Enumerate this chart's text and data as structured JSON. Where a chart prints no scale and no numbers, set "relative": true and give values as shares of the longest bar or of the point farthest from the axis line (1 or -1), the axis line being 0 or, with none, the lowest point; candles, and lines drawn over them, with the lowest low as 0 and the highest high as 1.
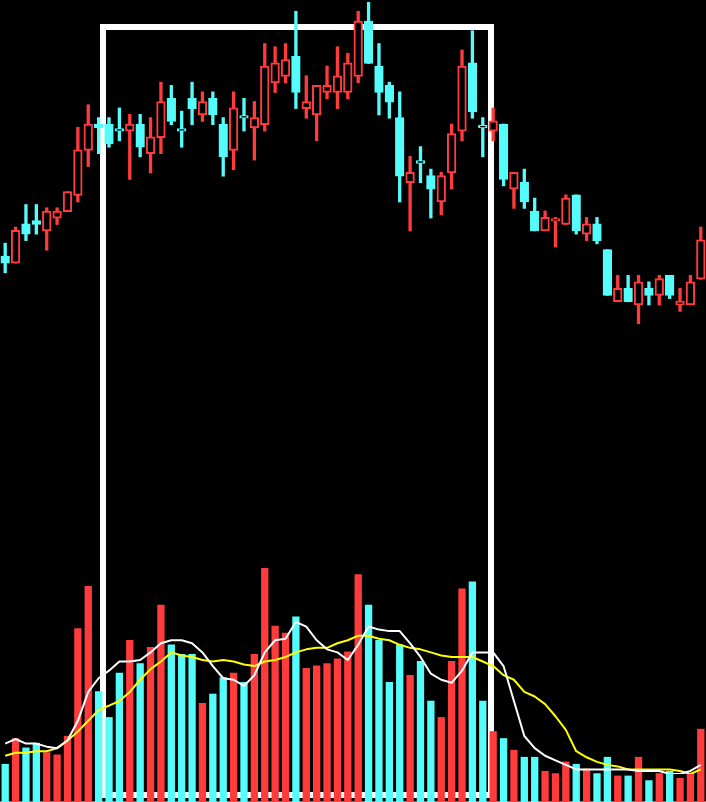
{
  "chart_data": [
    {
      "type": "candlestick",
      "relative": true,
      "categories": [
        null,
        null,
        null,
        null,
        null,
        null,
        null,
        null,
        null,
        null,
        null,
        null,
        null,
        null,
        null,
        null,
        null,
        null,
        null,
        null,
        null,
        null,
        null,
        null,
        null,
        null,
        null,
        null,
        null,
        null,
        null,
        null,
        null,
        null,
        null,
        null,
        null,
        null,
        null,
        null,
        null,
        null,
        null,
        null,
        null,
        null,
        null,
        null,
        null,
        null,
        null,
        null,
        null,
        null,
        null,
        null,
        null,
        null,
        null,
        null,
        null,
        null,
        null,
        null,
        null,
        null,
        null,
        null
      ],
      "ohlc": [
        [
          0.21,
          0.25,
          0.16,
          0.19
        ],
        [
          0.19,
          0.3,
          0.19,
          0.29
        ],
        [
          0.31,
          0.37,
          0.26,
          0.28
        ],
        [
          0.32,
          0.37,
          0.28,
          0.31
        ],
        [
          0.29,
          0.36,
          0.23,
          0.35
        ],
        [
          0.33,
          0.36,
          0.31,
          0.35
        ],
        [
          0.35,
          0.41,
          0.35,
          0.41
        ],
        [
          0.4,
          0.61,
          0.38,
          0.54
        ],
        [
          0.54,
          0.68,
          0.49,
          0.62
        ],
        [
          0.62,
          0.64,
          0.53,
          0.61
        ],
        [
          0.62,
          0.64,
          0.55,
          0.56
        ],
        [
          0.6,
          0.67,
          0.57,
          0.6
        ],
        [
          0.6,
          0.65,
          0.45,
          0.62
        ],
        [
          0.62,
          0.65,
          0.52,
          0.55
        ],
        [
          0.53,
          0.64,
          0.47,
          0.58
        ],
        [
          0.58,
          0.75,
          0.53,
          0.69
        ],
        [
          0.7,
          0.74,
          0.62,
          0.63
        ],
        [
          0.6,
          0.66,
          0.55,
          0.6
        ],
        [
          0.7,
          0.75,
          0.62,
          0.67
        ],
        [
          0.65,
          0.72,
          0.63,
          0.69
        ],
        [
          0.7,
          0.72,
          0.62,
          0.65
        ],
        [
          0.62,
          0.64,
          0.46,
          0.52
        ],
        [
          0.54,
          0.72,
          0.48,
          0.67
        ],
        [
          0.64,
          0.7,
          0.6,
          0.64
        ],
        [
          0.61,
          0.69,
          0.51,
          0.64
        ],
        [
          0.62,
          0.87,
          0.6,
          0.8
        ],
        [
          0.75,
          0.86,
          0.72,
          0.81
        ],
        [
          0.77,
          0.87,
          0.75,
          0.82
        ],
        [
          0.83,
          0.97,
          0.67,
          0.72
        ],
        [
          0.67,
          0.77,
          0.64,
          0.69
        ],
        [
          0.65,
          0.74,
          0.57,
          0.74
        ],
        [
          0.72,
          0.8,
          0.7,
          0.74
        ],
        [
          0.72,
          0.86,
          0.67,
          0.77
        ],
        [
          0.72,
          0.84,
          0.7,
          0.81
        ],
        [
          0.77,
          0.97,
          0.75,
          0.94
        ],
        [
          0.94,
          1,
          0.81,
          0.81
        ],
        [
          0.8,
          0.87,
          0.65,
          0.72
        ],
        [
          0.74,
          0.75,
          0.64,
          0.69
        ],
        [
          0.64,
          0.72,
          0.38,
          0.46
        ],
        [
          0.44,
          0.52,
          0.29,
          0.47
        ],
        [
          0.5,
          0.55,
          0.44,
          0.5
        ],
        [
          0.46,
          0.48,
          0.33,
          0.42
        ],
        [
          0.38,
          0.47,
          0.34,
          0.46
        ],
        [
          0.47,
          0.62,
          0.42,
          0.59
        ],
        [
          0.6,
          0.85,
          0.57,
          0.8
        ],
        [
          0.81,
          0.91,
          0.64,
          0.66
        ],
        [
          0.61,
          0.64,
          0.52,
          0.61
        ],
        [
          0.6,
          0.67,
          0.57,
          0.63
        ],
        [
          0.62,
          0.62,
          0.43,
          0.45
        ],
        [
          0.42,
          0.47,
          0.36,
          0.47
        ],
        [
          0.44,
          0.48,
          0.36,
          0.38
        ],
        [
          0.35,
          0.39,
          0.29,
          0.29
        ],
        [
          0.29,
          0.35,
          0.29,
          0.33
        ],
        [
          0.32,
          0.33,
          0.24,
          0.32
        ],
        [
          0.31,
          0.4,
          0.31,
          0.39
        ],
        [
          0.4,
          0.4,
          0.28,
          0.29
        ],
        [
          0.28,
          0.33,
          0.26,
          0.31
        ],
        [
          0.31,
          0.33,
          0.25,
          0.26
        ],
        [
          0.23,
          0.23,
          0.09,
          0.09
        ],
        [
          0.07,
          0.15,
          0.07,
          0.11
        ],
        [
          0.11,
          0.15,
          0.07,
          0.07
        ],
        [
          0.06,
          0.15,
          0,
          0.13
        ],
        [
          0.11,
          0.13,
          0.06,
          0.09
        ],
        [
          0.09,
          0.15,
          0.06,
          0.14
        ],
        [
          0.15,
          0.15,
          0.08,
          0.09
        ],
        [
          0.06,
          0.11,
          0.04,
          0.07
        ],
        [
          0.06,
          0.15,
          0.06,
          0.13
        ],
        [
          0.14,
          0.3,
          0.14,
          0.26
        ]
      ],
      "colors": [
        "#54fcfc",
        "#ff3b3b",
        "#54fcfc",
        "#54fcfc",
        "#ff3b3b",
        "#ff3b3b",
        "#ff3b3b",
        "#ff3b3b",
        "#ff3b3b",
        "#54fcfc",
        "#54fcfc",
        "#54fcfc",
        "#ff3b3b",
        "#54fcfc",
        "#ff3b3b",
        "#ff3b3b",
        "#54fcfc",
        "#54fcfc",
        "#54fcfc",
        "#ff3b3b",
        "#54fcfc",
        "#54fcfc",
        "#ff3b3b",
        "#54fcfc",
        "#ff3b3b",
        "#ff3b3b",
        "#ff3b3b",
        "#ff3b3b",
        "#54fcfc",
        "#ff3b3b",
        "#ff3b3b",
        "#ff3b3b",
        "#ff3b3b",
        "#ff3b3b",
        "#ff3b3b",
        "#54fcfc",
        "#54fcfc",
        "#54fcfc",
        "#54fcfc",
        "#ff3b3b",
        "#54fcfc",
        "#54fcfc",
        "#ff3b3b",
        "#ff3b3b",
        "#ff3b3b",
        "#54fcfc",
        "#54fcfc",
        "#ff3b3b",
        "#54fcfc",
        "#ff3b3b",
        "#54fcfc",
        "#54fcfc",
        "#ff3b3b",
        "#ff3b3b",
        "#ff3b3b",
        "#54fcfc",
        "#ff3b3b",
        "#54fcfc",
        "#54fcfc",
        "#ff3b3b",
        "#54fcfc",
        "#ff3b3b",
        "#54fcfc",
        "#ff3b3b",
        "#54fcfc",
        "#ff3b3b",
        "#ff3b3b",
        "#ff3b3b"
      ]
    },
    {
      "type": "bar",
      "relative": true,
      "categories": [
        null,
        null,
        null,
        null,
        null,
        null,
        null,
        null,
        null,
        null,
        null,
        null,
        null,
        null,
        null,
        null,
        null,
        null,
        null,
        null,
        null,
        null,
        null,
        null,
        null,
        null,
        null,
        null,
        null,
        null,
        null,
        null,
        null,
        null,
        null,
        null,
        null,
        null,
        null,
        null,
        null,
        null,
        null,
        null,
        null,
        null,
        null,
        null,
        null,
        null,
        null,
        null,
        null,
        null,
        null,
        null,
        null,
        null,
        null,
        null,
        null,
        null,
        null,
        null,
        null,
        null,
        null,
        null
      ],
      "series": [
        {
          "type": "bar",
          "colors": [
            "#54fcfc",
            "#ff3b3b",
            "#54fcfc",
            "#54fcfc",
            "#ff3b3b",
            "#ff3b3b",
            "#ff3b3b",
            "#ff3b3b",
            "#ff3b3b",
            "#54fcfc",
            "#54fcfc",
            "#54fcfc",
            "#ff3b3b",
            "#54fcfc",
            "#ff3b3b",
            "#ff3b3b",
            "#54fcfc",
            "#54fcfc",
            "#54fcfc",
            "#ff3b3b",
            "#54fcfc",
            "#54fcfc",
            "#ff3b3b",
            "#54fcfc",
            "#ff3b3b",
            "#ff3b3b",
            "#ff3b3b",
            "#ff3b3b",
            "#54fcfc",
            "#ff3b3b",
            "#ff3b3b",
            "#ff3b3b",
            "#ff3b3b",
            "#ff3b3b",
            "#ff3b3b",
            "#54fcfc",
            "#54fcfc",
            "#54fcfc",
            "#54fcfc",
            "#ff3b3b",
            "#54fcfc",
            "#54fcfc",
            "#ff3b3b",
            "#ff3b3b",
            "#ff3b3b",
            "#54fcfc",
            "#54fcfc",
            "#ff3b3b",
            "#54fcfc",
            "#ff3b3b",
            "#54fcfc",
            "#54fcfc",
            "#ff3b3b",
            "#ff3b3b",
            "#ff3b3b",
            "#54fcfc",
            "#ff3b3b",
            "#54fcfc",
            "#54fcfc",
            "#ff3b3b",
            "#54fcfc",
            "#ff3b3b",
            "#54fcfc",
            "#ff3b3b",
            "#54fcfc",
            "#ff3b3b",
            "#ff3b3b",
            "#ff3b3b"
          ],
          "values": [
            0.16,
            0.27,
            0.23,
            0.25,
            0.21,
            0.2,
            0.28,
            0.74,
            0.92,
            0.47,
            0.36,
            0.55,
            0.69,
            0.59,
            0.66,
            0.84,
            0.67,
            0.63,
            0.63,
            0.42,
            0.46,
            0.53,
            0.55,
            0.51,
            0.63,
            1,
            0.75,
            0.72,
            0.79,
            0.57,
            0.58,
            0.59,
            0.61,
            0.64,
            0.97,
            0.84,
            0.69,
            0.51,
            0.67,
            0.54,
            0.6,
            0.43,
            0.36,
            0.6,
            0.91,
            0.94,
            0.43,
            0.3,
            0.27,
            0.22,
            0.19,
            0.19,
            0.13,
            0.12,
            0.17,
            0.16,
            0.14,
            0.12,
            0.19,
            0.11,
            0.11,
            0.19,
            0.09,
            0.12,
            0.13,
            0.1,
            0.12,
            0.31
          ]
        }
      ]
    },
    {
      "type": "line",
      "relative": true,
      "categories": [
        null,
        null,
        null,
        null,
        null,
        null,
        null,
        null,
        null,
        null,
        null,
        null,
        null,
        null,
        null,
        null,
        null,
        null,
        null,
        null,
        null,
        null,
        null,
        null,
        null,
        null,
        null,
        null,
        null,
        null,
        null,
        null,
        null,
        null,
        null,
        null,
        null,
        null,
        null,
        null,
        null,
        null,
        null,
        null,
        null,
        null,
        null,
        null,
        null,
        null,
        null,
        null,
        null,
        null,
        null,
        null,
        null,
        null,
        null,
        null,
        null,
        null,
        null,
        null,
        null,
        null,
        null,
        null
      ],
      "series": [
        {
          "color": "#ffffff",
          "values": [
            0.2,
            0.23,
            0.2,
            0.2,
            0.18,
            0.17,
            0.22,
            0.35,
            0.54,
            0.63,
            0.68,
            0.74,
            0.74,
            0.75,
            0.8,
            0.86,
            0.88,
            0.88,
            0.86,
            0.8,
            0.71,
            0.63,
            0.62,
            0.58,
            0.65,
            0.8,
            0.88,
            0.89,
            1,
            0.97,
            0.88,
            0.82,
            0.8,
            0.75,
            0.85,
            0.97,
            0.95,
            0.94,
            0.94,
            0.86,
            0.77,
            0.66,
            0.62,
            0.6,
            0.68,
            0.8,
            0.8,
            0.8,
            0.71,
            0.48,
            0.25,
            0.17,
            0.12,
            0.09,
            0.06,
            0.03,
            0.03,
            0.03,
            0.03,
            0.03,
            0.03,
            0.02,
            0.02,
            0.02,
            0,
            0,
            0.02,
            0.06
          ]
        },
        {
          "color": "#ffff00",
          "values": [
            0.12,
            0.14,
            0.14,
            0.15,
            0.15,
            0.17,
            0.22,
            0.28,
            0.35,
            0.42,
            0.45,
            0.48,
            0.54,
            0.62,
            0.69,
            0.74,
            0.8,
            0.78,
            0.77,
            0.75,
            0.74,
            0.75,
            0.74,
            0.72,
            0.71,
            0.74,
            0.75,
            0.77,
            0.8,
            0.82,
            0.83,
            0.83,
            0.86,
            0.88,
            0.91,
            0.91,
            0.89,
            0.88,
            0.85,
            0.83,
            0.82,
            0.8,
            0.78,
            0.77,
            0.77,
            0.77,
            0.74,
            0.71,
            0.65,
            0.62,
            0.54,
            0.51,
            0.46,
            0.38,
            0.29,
            0.15,
            0.11,
            0.08,
            0.06,
            0.05,
            0.03,
            0.03,
            0.03,
            0.03,
            0.03,
            0.02,
            0,
            0.03
          ]
        }
      ]
    }
  ]
}
